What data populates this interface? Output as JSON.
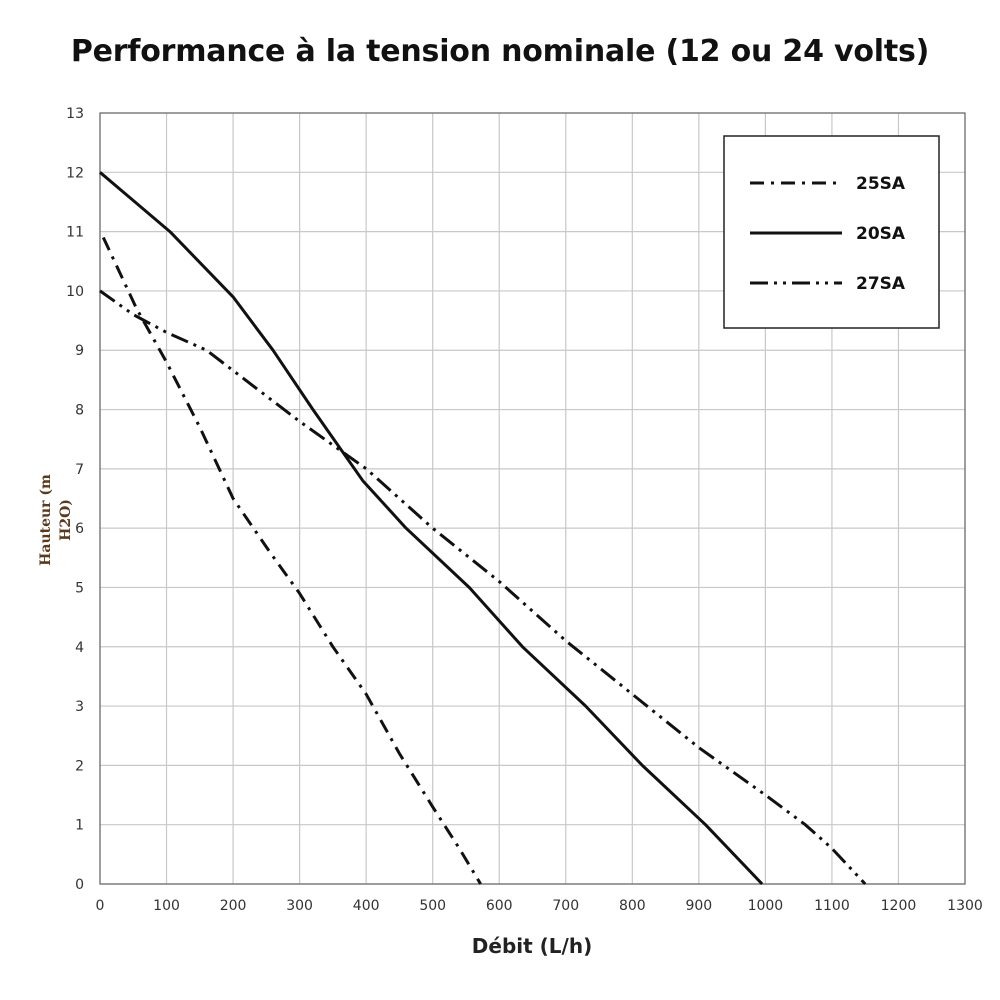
{
  "chart_data": {
    "type": "line",
    "title": "Performance à la tension nominale (12 ou 24 volts)",
    "xlabel": "Débit (L/h)",
    "ylabel_lines": [
      "Hauteur (m",
      "H2O)"
    ],
    "xlim": [
      0,
      1300
    ],
    "ylim": [
      0,
      13
    ],
    "x_ticks": [
      0,
      100,
      200,
      300,
      400,
      500,
      600,
      700,
      800,
      900,
      1000,
      1100,
      1200,
      1300
    ],
    "y_ticks": [
      0,
      1,
      2,
      3,
      4,
      5,
      6,
      7,
      8,
      9,
      10,
      11,
      12,
      13
    ],
    "grid": true,
    "legend_position": "top-right",
    "series": [
      {
        "name": "25SA",
        "style": "dash-dot",
        "points": [
          [
            5,
            10.9
          ],
          [
            30,
            10.3
          ],
          [
            55,
            9.7
          ],
          [
            100,
            8.8
          ],
          [
            150,
            7.7
          ],
          [
            200,
            6.5
          ],
          [
            255,
            5.6
          ],
          [
            300,
            4.9
          ],
          [
            350,
            4.0
          ],
          [
            400,
            3.2
          ],
          [
            450,
            2.2
          ],
          [
            500,
            1.3
          ],
          [
            540,
            0.6
          ],
          [
            572,
            0
          ]
        ]
      },
      {
        "name": "20SA",
        "style": "solid",
        "points": [
          [
            0,
            12
          ],
          [
            105,
            11
          ],
          [
            200,
            9.9
          ],
          [
            260,
            9
          ],
          [
            320,
            8
          ],
          [
            395,
            6.8
          ],
          [
            460,
            6
          ],
          [
            555,
            5
          ],
          [
            635,
            4
          ],
          [
            730,
            3
          ],
          [
            815,
            2
          ],
          [
            910,
            1
          ],
          [
            995,
            0
          ]
        ]
      },
      {
        "name": "27SA",
        "style": "dash-dot-dot",
        "points": [
          [
            0,
            10
          ],
          [
            50,
            9.6
          ],
          [
            100,
            9.3
          ],
          [
            160,
            9
          ],
          [
            230,
            8.4
          ],
          [
            300,
            7.8
          ],
          [
            400,
            7.0
          ],
          [
            500,
            6.0
          ],
          [
            600,
            5.1
          ],
          [
            700,
            4.1
          ],
          [
            800,
            3.2
          ],
          [
            900,
            2.3
          ],
          [
            1000,
            1.5
          ],
          [
            1060,
            1.0
          ],
          [
            1100,
            0.6
          ],
          [
            1150,
            0
          ]
        ]
      }
    ]
  }
}
